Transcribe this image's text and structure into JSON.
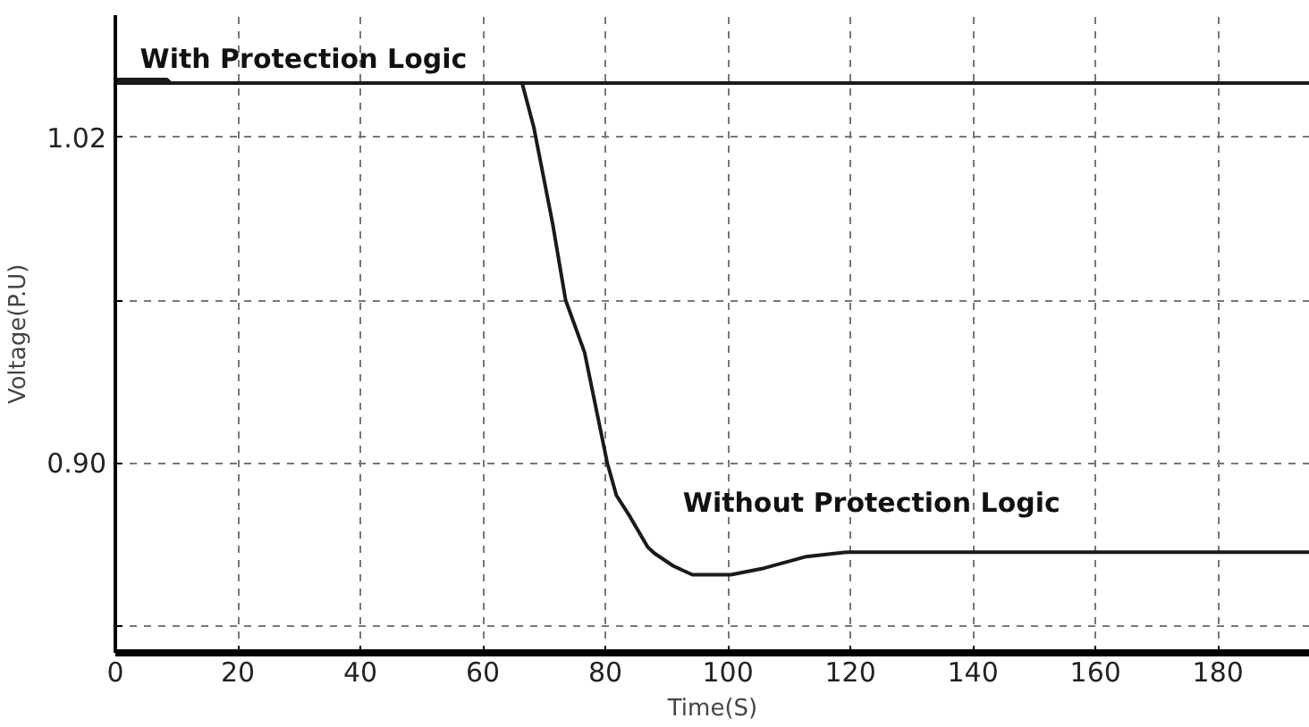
{
  "chart_data": {
    "type": "line",
    "xlabel": "Time(S)",
    "ylabel": "Voltage(P.U)",
    "xlim": [
      0,
      195
    ],
    "ylim": [
      0.83,
      1.065
    ],
    "xticks": [
      0,
      20,
      40,
      60,
      80,
      100,
      120,
      140,
      160,
      180
    ],
    "yticks": [
      {
        "value": 0.84,
        "label": null
      },
      {
        "value": 0.9,
        "label": "0.90"
      },
      {
        "value": 0.96,
        "label": null
      },
      1.02
    ],
    "grid": true,
    "line_style": "solid",
    "marker": "none",
    "series": [
      {
        "color": "#1a1a1a",
        "x": [
          0,
          8.4,
          9,
          195
        ],
        "values": [
          1.0413,
          1.0413,
          1.04,
          1.04
        ]
      },
      {
        "color": "#1a1a1a",
        "x": [
          0,
          66.4,
          68.3,
          71.4,
          73.5,
          76.6,
          80.3,
          81.8,
          83.8,
          86.9,
          88,
          91.1,
          94.2,
          97,
          100.5,
          105.5,
          112.8,
          119,
          120,
          195
        ],
        "values": [
          1.04,
          1.04,
          1.0238,
          0.988,
          0.96,
          0.9407,
          0.9,
          0.888,
          0.881,
          0.869,
          0.8667,
          0.862,
          0.8588,
          0.8588,
          0.8588,
          0.861,
          0.8655,
          0.867,
          0.8671,
          0.8671
        ]
      }
    ],
    "annotations": [
      "With Protection Logic",
      "Without Protection Logic"
    ]
  }
}
